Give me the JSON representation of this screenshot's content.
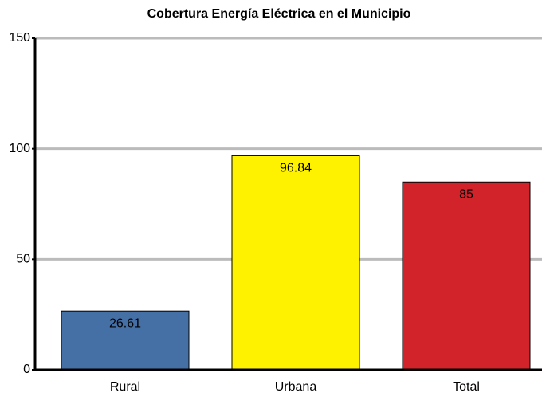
{
  "chart_data": {
    "type": "bar",
    "title": "Cobertura Energía Eléctrica en el Municipio",
    "categories": [
      "Rural",
      "Urbana",
      "Total"
    ],
    "values": [
      26.61,
      96.84,
      85
    ],
    "colors": [
      "#4470a6",
      "#fff200",
      "#d2232a"
    ],
    "ylim": [
      0,
      150
    ],
    "yticks": [
      0,
      50,
      100,
      150
    ],
    "grid": true
  }
}
